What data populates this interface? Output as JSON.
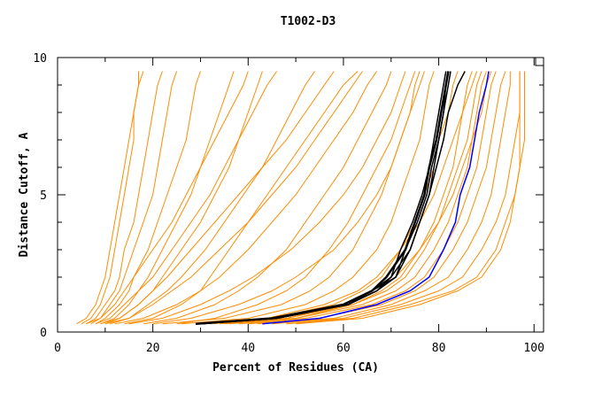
{
  "chart_data": {
    "type": "line",
    "title": "T1002-D3",
    "xlabel": "Percent of Residues (CA)",
    "ylabel": "Distance Cutoff, A",
    "xlim": [
      0,
      102
    ],
    "ylim": [
      0,
      10
    ],
    "xticks": [
      0,
      20,
      40,
      60,
      80,
      100
    ],
    "yticks": [
      0,
      5,
      10
    ],
    "grid": false,
    "colors": {
      "other": "#ff8c00",
      "highlight": "#000000",
      "best": "#0000ff"
    },
    "y_levels": [
      0.3,
      0.5,
      1,
      1.5,
      2,
      3,
      4,
      5,
      6,
      7,
      8,
      9,
      9.5
    ],
    "series_other": [
      [
        30,
        45,
        58,
        64,
        68,
        72,
        75,
        77,
        79,
        80,
        82,
        83,
        84
      ],
      [
        32,
        48,
        62,
        68,
        72,
        76,
        79,
        81,
        83,
        84,
        85,
        86,
        87
      ],
      [
        35,
        50,
        64,
        71,
        75,
        79,
        82,
        84,
        86,
        87,
        88,
        89,
        90
      ],
      [
        38,
        52,
        66,
        73,
        77,
        81,
        84,
        86,
        88,
        89,
        90,
        91,
        92
      ],
      [
        40,
        55,
        68,
        75,
        79,
        83,
        86,
        88,
        90,
        91,
        92,
        93,
        94
      ],
      [
        42,
        58,
        70,
        77,
        82,
        86,
        89,
        91,
        92,
        93,
        94,
        95,
        95
      ],
      [
        45,
        60,
        72,
        80,
        85,
        89,
        92,
        94,
        95,
        96,
        97,
        97,
        97
      ],
      [
        48,
        62,
        74,
        83,
        88,
        92,
        94,
        96,
        97,
        98,
        98,
        98,
        98
      ],
      [
        26,
        40,
        52,
        58,
        62,
        67,
        70,
        72,
        74,
        76,
        77,
        78,
        79
      ],
      [
        22,
        35,
        47,
        53,
        57,
        62,
        65,
        68,
        70,
        72,
        74,
        75,
        76
      ],
      [
        30,
        44,
        56,
        63,
        67,
        72,
        76,
        79,
        81,
        83,
        85,
        87,
        88
      ],
      [
        36,
        50,
        62,
        69,
        73,
        77,
        80,
        82,
        84,
        86,
        87,
        88,
        89
      ],
      [
        20,
        28,
        38,
        45,
        50,
        58,
        63,
        67,
        70,
        72,
        74,
        76,
        77
      ],
      [
        15,
        22,
        30,
        36,
        41,
        49,
        55,
        60,
        64,
        67,
        70,
        72,
        73
      ],
      [
        12,
        18,
        25,
        30,
        34,
        40,
        45,
        50,
        54,
        58,
        62,
        65,
        67
      ],
      [
        10,
        15,
        20,
        24,
        28,
        34,
        40,
        45,
        50,
        54,
        58,
        62,
        64
      ],
      [
        9,
        13,
        17,
        20,
        23,
        28,
        33,
        38,
        43,
        48,
        52,
        56,
        58
      ],
      [
        18,
        25,
        33,
        38,
        42,
        48,
        52,
        56,
        60,
        63,
        66,
        69,
        70
      ],
      [
        25,
        33,
        42,
        48,
        52,
        57,
        61,
        64,
        67,
        70,
        72,
        74,
        75
      ],
      [
        14,
        20,
        26,
        30,
        32,
        36,
        40,
        44,
        48,
        52,
        56,
        60,
        63
      ],
      [
        5,
        7,
        9,
        10,
        11,
        12,
        13,
        14,
        15,
        16,
        16,
        17,
        17
      ],
      [
        6,
        8,
        10,
        12,
        13,
        14,
        16,
        17,
        18,
        19,
        20,
        21,
        22
      ],
      [
        7,
        9,
        11,
        13,
        14,
        16,
        18,
        20,
        21,
        22,
        23,
        24,
        25
      ],
      [
        8,
        10,
        13,
        15,
        16,
        19,
        21,
        23,
        25,
        27,
        28,
        29,
        30
      ],
      [
        4,
        6,
        8,
        9,
        10,
        11,
        12,
        13,
        14,
        15,
        16,
        17,
        18
      ],
      [
        9,
        12,
        15,
        17,
        19,
        22,
        25,
        28,
        30,
        32,
        34,
        36,
        37
      ],
      [
        10,
        13,
        17,
        20,
        22,
        26,
        30,
        33,
        36,
        38,
        40,
        42,
        43
      ],
      [
        8,
        11,
        14,
        17,
        20,
        24,
        28,
        32,
        35,
        38,
        41,
        44,
        46
      ],
      [
        6,
        9,
        12,
        14,
        16,
        20,
        24,
        27,
        30,
        33,
        36,
        39,
        40
      ],
      [
        11,
        15,
        19,
        23,
        26,
        31,
        35,
        39,
        43,
        46,
        49,
        52,
        54
      ],
      [
        50,
        64,
        76,
        84,
        89,
        93,
        95,
        96,
        97,
        97,
        97,
        97,
        97
      ],
      [
        34,
        48,
        60,
        67,
        71,
        76,
        80,
        83,
        85,
        87,
        89,
        90,
        91
      ]
    ],
    "series_highlight": [
      [
        29,
        45,
        60,
        66,
        69,
        73,
        75,
        77,
        78,
        79.5,
        80.5,
        81.5,
        82
      ],
      [
        30,
        46,
        61,
        67,
        70,
        74,
        76,
        78,
        79,
        80,
        81,
        82,
        82.5
      ],
      [
        29,
        45,
        60,
        66,
        71,
        73,
        75.5,
        77.5,
        78.5,
        80,
        81,
        81.5,
        82
      ],
      [
        30,
        46,
        61,
        66,
        70,
        72,
        74.5,
        76.5,
        78,
        79,
        80,
        81,
        81.5
      ],
      [
        30,
        46,
        61,
        67,
        71,
        74,
        76,
        78,
        79.5,
        81,
        82,
        84,
        85.5
      ]
    ],
    "series_best": [
      43,
      55,
      67,
      74,
      78,
      81,
      83.5,
      84.5,
      86.5,
      87.5,
      88.5,
      90,
      90.5
    ]
  }
}
